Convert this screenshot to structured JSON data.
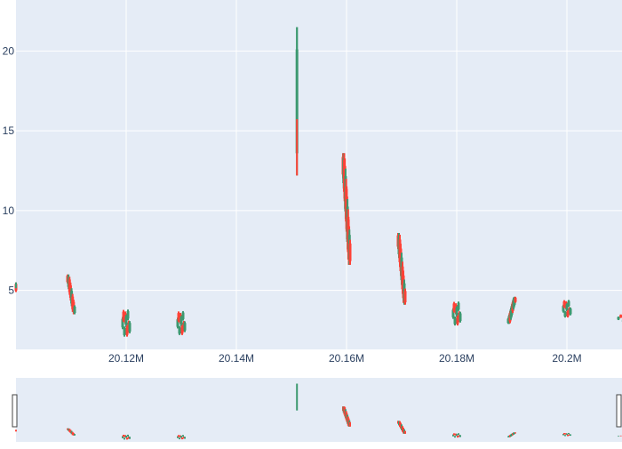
{
  "chart_data": {
    "type": "candlestick",
    "title": "",
    "xlabel": "",
    "ylabel": "",
    "xlim": [
      20100000,
      20210000
    ],
    "ylim": [
      1.3,
      23.2
    ],
    "x_ticks": [
      {
        "value": 20120000,
        "label": "20.12M"
      },
      {
        "value": 20140000,
        "label": "20.14M"
      },
      {
        "value": 20160000,
        "label": "20.16M"
      },
      {
        "value": 20180000,
        "label": "20.18M"
      },
      {
        "value": 20200000,
        "label": "20.2M"
      }
    ],
    "y_ticks": [
      {
        "value": 5,
        "label": "5"
      },
      {
        "value": 10,
        "label": "10"
      },
      {
        "value": 15,
        "label": "15"
      },
      {
        "value": 20,
        "label": "20"
      }
    ],
    "increasing_color": "#3d9970",
    "decreasing_color": "#ff4136",
    "plot_background": "#e5ecf6",
    "grid": true,
    "legend": "none",
    "rangeslider": true,
    "clusters": [
      {
        "x": 20100000,
        "low": 4.9,
        "high": 5.5,
        "dir": "down",
        "n": 1
      },
      {
        "x": 20110000,
        "low": 3.5,
        "high": 6.0,
        "dir": "down",
        "n": 8
      },
      {
        "x": 20120000,
        "low": 2.1,
        "high": 3.8,
        "dir": "mixed",
        "n": 9
      },
      {
        "x": 20130000,
        "low": 2.2,
        "high": 3.7,
        "dir": "mixed",
        "n": 9
      },
      {
        "x": 20151000,
        "low": 12.2,
        "high": 21.5,
        "dir": "mixed",
        "n": 1
      },
      {
        "x": 20160000,
        "low": 6.6,
        "high": 13.6,
        "dir": "down",
        "n": 12
      },
      {
        "x": 20170000,
        "low": 4.1,
        "high": 8.6,
        "dir": "down",
        "n": 9
      },
      {
        "x": 20180000,
        "low": 2.8,
        "high": 4.3,
        "dir": "mixed",
        "n": 9
      },
      {
        "x": 20190000,
        "low": 2.9,
        "high": 4.6,
        "dir": "up",
        "n": 9
      },
      {
        "x": 20200000,
        "low": 3.3,
        "high": 4.4,
        "dir": "mixed",
        "n": 9
      },
      {
        "x": 20210000,
        "low": 3.0,
        "high": 3.5,
        "dir": "mixed",
        "n": 4
      }
    ]
  }
}
